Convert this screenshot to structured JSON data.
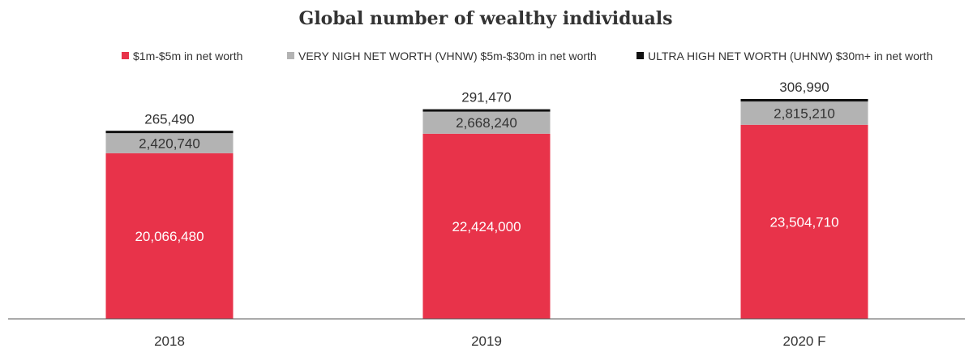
{
  "chart_data": {
    "type": "bar",
    "stacked": true,
    "title": "Global number of wealthy individuals",
    "categories": [
      "2018",
      "2019",
      "2020 F"
    ],
    "series": [
      {
        "name": "$1m-$5m in net worth",
        "color": "#e8334a",
        "values": [
          20066480,
          22424000,
          23504710
        ],
        "labels": [
          "20,066,480",
          "22,424,000",
          "23,504,710"
        ]
      },
      {
        "name": "VERY NIGH NET WORTH (VHNW) $5m-$30m in net worth",
        "color": "#b3b3b3",
        "values": [
          2420740,
          2668240,
          2815210
        ],
        "labels": [
          "2,420,740",
          "2,668,240",
          "2,815,210"
        ]
      },
      {
        "name": "ULTRA HIGH NET WORTH (UHNW) $30m+ in net worth",
        "color": "#111111",
        "values": [
          265490,
          291470,
          306990
        ],
        "labels": [
          "265,490",
          "291,470",
          "306,990"
        ]
      }
    ],
    "legend_position": "top",
    "grid": false
  }
}
